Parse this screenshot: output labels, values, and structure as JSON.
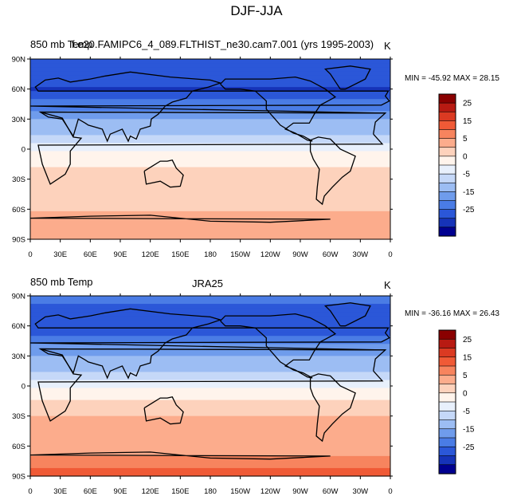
{
  "figure": {
    "title": "DJF-JJA",
    "panels": [
      {
        "left_label": "850 mb Temp",
        "center_label": "f.e20.FAMIPC6_4_089.FLTHIST_ne30.cam7.001 (yrs 1995-2003)",
        "units": "K",
        "minmax": "MIN = -45.92 MAX =  28.15"
      },
      {
        "left_label": "850 mb Temp",
        "center_label": "JRA25",
        "units": "K",
        "minmax": "MIN = -36.16 MAX =  26.43"
      }
    ]
  },
  "chart_data": [
    {
      "type": "heatmap",
      "title": "DJF-JJA",
      "variable": "850 mb Temp",
      "dataset": "f.e20.FAMIPC6_4_089.FLTHIST_ne30.cam7.001 (yrs 1995-2003)",
      "units": "K",
      "min": -45.92,
      "max": 28.15,
      "x_ticks": [
        "0",
        "30E",
        "60E",
        "90E",
        "120E",
        "150E",
        "180",
        "150W",
        "120W",
        "90W",
        "60W",
        "30W",
        "0"
      ],
      "y_ticks": [
        "90N",
        "60N",
        "30N",
        "0",
        "30S",
        "60S",
        "90S"
      ],
      "colorbar_labels": [
        "25",
        "15",
        "5",
        "0",
        "-5",
        "-15",
        "-25"
      ],
      "colorbar_levels": [
        -30,
        -25,
        -20,
        -15,
        -10,
        -5,
        -2.5,
        0,
        2.5,
        5,
        10,
        15,
        20,
        25,
        30
      ],
      "colorbar_colors": [
        "#8a0000",
        "#b81a12",
        "#db3a22",
        "#f05a36",
        "#f7845e",
        "#fcac8c",
        "#fdd2bc",
        "#fff4ec",
        "#e8f0fc",
        "#c5d8f8",
        "#9cbdf3",
        "#6f9cec",
        "#4a7ce5",
        "#2b57d8",
        "#1633b8",
        "#000090"
      ],
      "zonal_mean_profile": {
        "latitude": [
          90,
          60,
          30,
          0,
          -30,
          -60,
          -90
        ],
        "value": [
          -20,
          -25,
          -10,
          0,
          4,
          5,
          9
        ]
      }
    },
    {
      "type": "heatmap",
      "title": "DJF-JJA",
      "variable": "850 mb Temp",
      "dataset": "JRA25",
      "units": "K",
      "min": -36.16,
      "max": 26.43,
      "x_ticks": [
        "0",
        "30E",
        "60E",
        "90E",
        "120E",
        "150E",
        "180",
        "150W",
        "120W",
        "90W",
        "60W",
        "30W",
        "0"
      ],
      "y_ticks": [
        "90N",
        "60N",
        "30N",
        "0",
        "30S",
        "60S",
        "90S"
      ],
      "colorbar_labels": [
        "25",
        "15",
        "5",
        "0",
        "-5",
        "-15",
        "-25"
      ],
      "colorbar_levels": [
        -30,
        -25,
        -20,
        -15,
        -10,
        -5,
        -2.5,
        0,
        2.5,
        5,
        10,
        15,
        20,
        25,
        30
      ],
      "colorbar_colors": [
        "#8a0000",
        "#b81a12",
        "#db3a22",
        "#f05a36",
        "#f7845e",
        "#fcac8c",
        "#fdd2bc",
        "#fff4ec",
        "#e8f0fc",
        "#c5d8f8",
        "#9cbdf3",
        "#6f9cec",
        "#4a7ce5",
        "#2b57d8",
        "#1633b8",
        "#000090"
      ],
      "zonal_mean_profile": {
        "latitude": [
          90,
          60,
          30,
          0,
          -30,
          -60,
          -90
        ],
        "value": [
          -18,
          -24,
          -10,
          0,
          5,
          6,
          18
        ]
      }
    }
  ]
}
